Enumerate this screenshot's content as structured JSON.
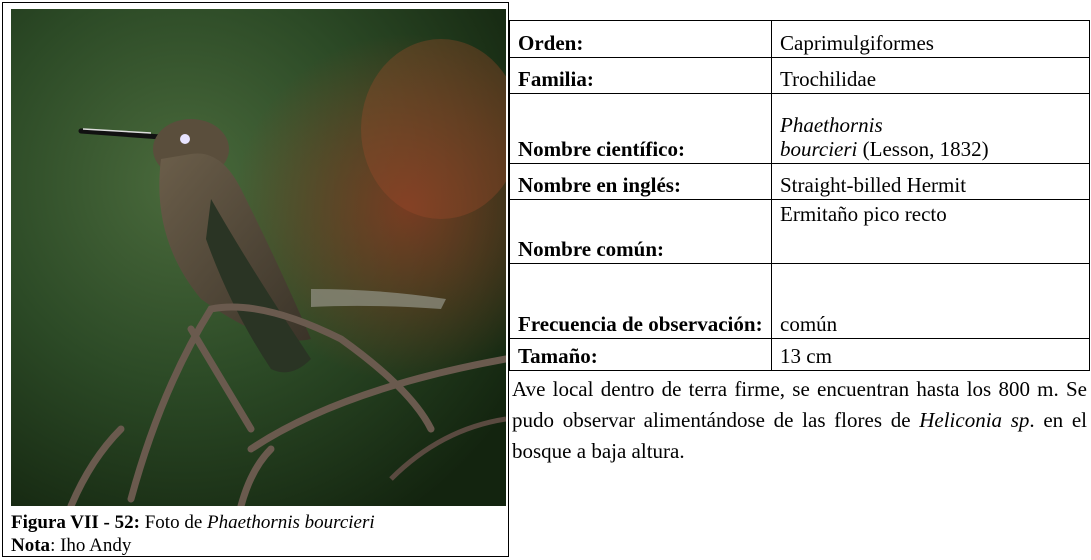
{
  "caption": {
    "figure_label": "Figura VII - 52:",
    "figure_text": "Foto de",
    "figure_species": "Phaethornis bourcieri",
    "note_label": "Nota",
    "note_text": ": Iho Andy"
  },
  "table": {
    "rows": [
      {
        "label": "Orden:",
        "value": [
          {
            "text": "Caprimulgiformes",
            "italic": false
          }
        ]
      },
      {
        "label": "Familia:",
        "value": [
          {
            "text": "Trochilidae",
            "italic": false
          }
        ]
      },
      {
        "label": "Nombre científico:",
        "value": [
          {
            "text": "Phaethornis",
            "italic": true
          },
          {
            "text": "bourcieri",
            "italic": true
          },
          {
            "text": "(Lesson, 1832)",
            "italic": false
          }
        ]
      },
      {
        "label": "Nombre en inglés:",
        "value": [
          {
            "text": "Straight-billed Hermit",
            "italic": false
          }
        ]
      },
      {
        "label": "Nombre común:",
        "value": [
          {
            "text": "Ermitaño pico recto",
            "italic": false
          }
        ]
      },
      {
        "label": "Frecuencia de observación:",
        "value": [
          {
            "text": "común",
            "italic": false
          }
        ]
      },
      {
        "label": "Tamaño:",
        "value": [
          {
            "text": "13 cm",
            "italic": false
          }
        ]
      }
    ]
  },
  "description": [
    {
      "text": "Ave local dentro de terra firme, se encuentran hasta los 800 m. Se pudo observar alimentándose de las flores de",
      "italic": false
    },
    {
      "text": "Heliconia sp",
      "italic": true
    },
    {
      "text": ". en el bosque a baja altura.",
      "italic": false
    }
  ]
}
